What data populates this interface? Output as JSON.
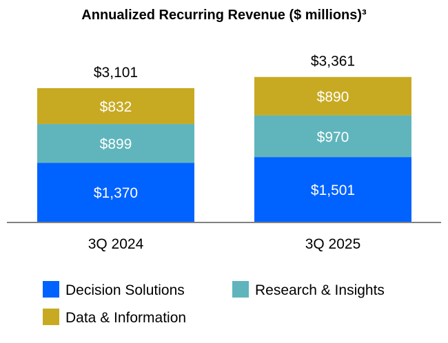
{
  "chart_data": {
    "type": "bar",
    "stacked": true,
    "title": "Annualized Recurring Revenue ($ millions)³",
    "categories": [
      "3Q 2024",
      "3Q 2025"
    ],
    "series": [
      {
        "name": "Decision Solutions",
        "color": "#0062ff",
        "values": [
          1370,
          1501
        ],
        "labels": [
          "$1,370",
          "$1,501"
        ]
      },
      {
        "name": "Research & Insights",
        "color": "#5fb5bb",
        "values": [
          899,
          970
        ],
        "labels": [
          "$899",
          "$970"
        ]
      },
      {
        "name": "Data & Information",
        "color": "#c8aa22",
        "values": [
          832,
          890
        ],
        "labels": [
          "$832",
          "$890"
        ]
      }
    ],
    "totals": [
      3101,
      3361
    ],
    "total_labels": [
      "$3,101",
      "$3,361"
    ],
    "xlabel": "",
    "ylabel": "",
    "ylim": [
      0,
      3361
    ],
    "grid": false,
    "legend_position": "bottom"
  }
}
